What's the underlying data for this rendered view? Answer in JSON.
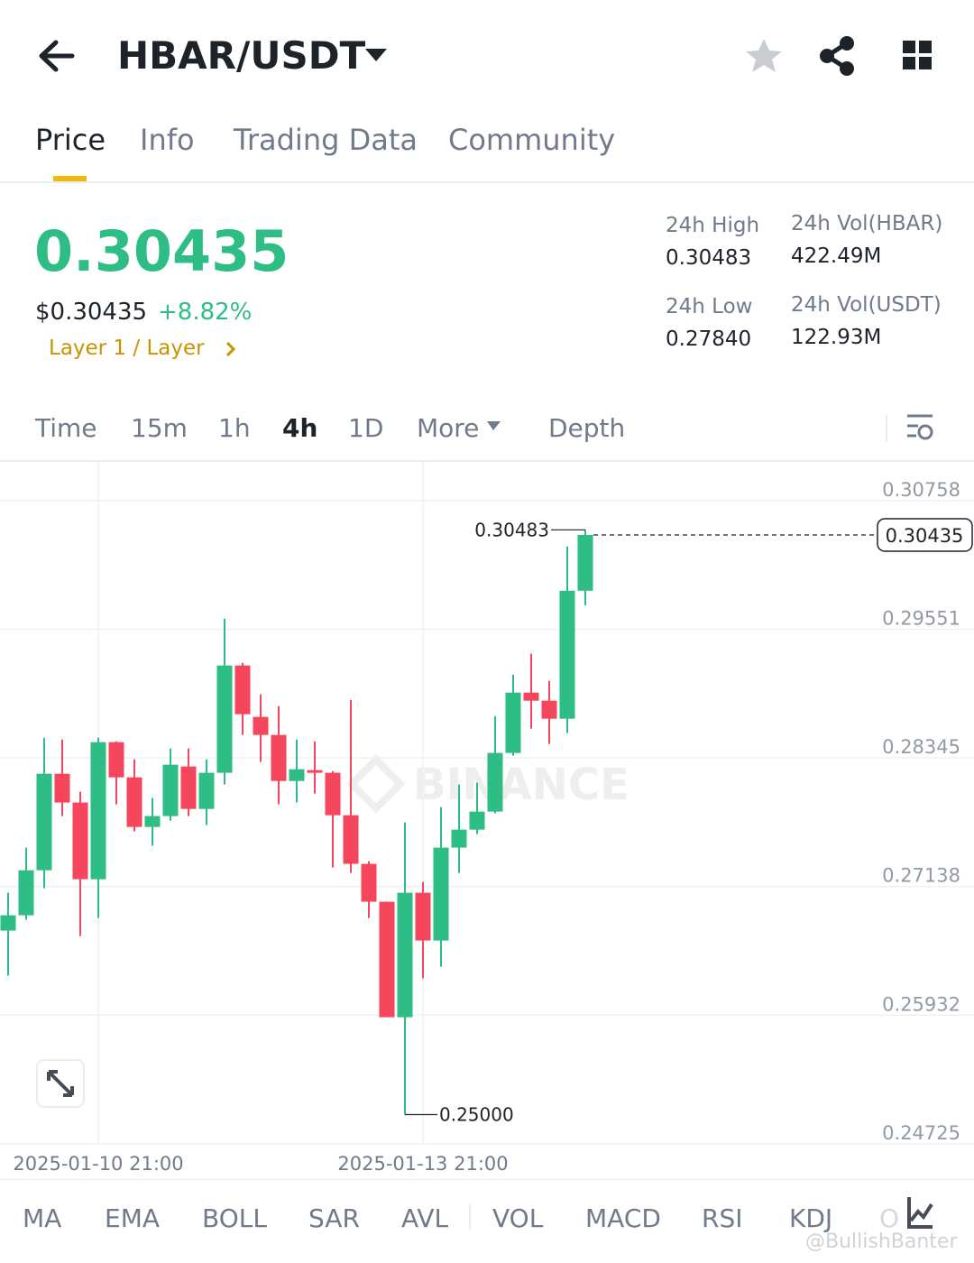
{
  "header": {
    "title": "HBAR/USDT"
  },
  "tabs": [
    "Price",
    "Info",
    "Trading Data",
    "Community"
  ],
  "ticker": {
    "price": "0.30435",
    "usd_price": "$0.30435",
    "change": "+8.82%",
    "tag": "Layer 1 / Layer"
  },
  "stats": [
    {
      "label": "24h High",
      "value": "0.30483"
    },
    {
      "label": "24h Vol(HBAR)",
      "value": "422.49M"
    },
    {
      "label": "24h Low",
      "value": "0.27840"
    },
    {
      "label": "24h Vol(USDT)",
      "value": "122.93M"
    }
  ],
  "intervals": [
    "Time",
    "15m",
    "1h",
    "4h",
    "1D",
    "More",
    "Depth"
  ],
  "indicators": [
    "MA",
    "EMA",
    "BOLL",
    "SAR",
    "AVL",
    "VOL",
    "MACD",
    "RSI",
    "KDJ",
    "O"
  ],
  "watermark": "BINANCE",
  "credit": "@BullishBanter",
  "chart_data": {
    "type": "candlestick",
    "categories": [
      null,
      null,
      null,
      null,
      null,
      "2025-01-10 21:00",
      null,
      null,
      null,
      null,
      null,
      null,
      null,
      null,
      null,
      null,
      null,
      null,
      null,
      null,
      null,
      null,
      null,
      "2025-01-13 21:00",
      null,
      null,
      null,
      null,
      null,
      null,
      null,
      null,
      null
    ],
    "open": [
      0.26725,
      0.26869,
      0.27291,
      0.28196,
      0.27926,
      0.27207,
      0.28492,
      0.28162,
      0.27697,
      0.27799,
      0.28264,
      0.27866,
      0.28205,
      0.29211,
      0.28729,
      0.2856,
      0.28128,
      0.2823,
      0.28205,
      0.27807,
      0.27351,
      0.26996,
      0.25913,
      0.2708,
      0.26632,
      0.27503,
      0.27672,
      0.27841,
      0.28391,
      0.28957,
      0.28881,
      0.28712,
      0.29912
    ],
    "high": [
      0.2708,
      0.27503,
      0.28534,
      0.28517,
      0.28027,
      0.28534,
      0.285,
      0.28331,
      0.27968,
      0.28433,
      0.28433,
      0.28331,
      0.2965,
      0.29236,
      0.2894,
      0.2883,
      0.28517,
      0.285,
      0.28221,
      0.28889,
      0.27376,
      0.26996,
      0.2774,
      0.27182,
      0.27883,
      0.28095,
      0.28112,
      0.28737,
      0.29126,
      0.29321,
      0.29067,
      0.30327,
      0.30483
    ],
    "low": [
      0.26302,
      0.26826,
      0.27122,
      0.27799,
      0.26674,
      0.26843,
      0.27909,
      0.27655,
      0.2752,
      0.27756,
      0.27799,
      0.27714,
      0.28095,
      0.2856,
      0.28306,
      0.27909,
      0.27926,
      0.2801,
      0.27317,
      0.27266,
      0.26843,
      0.25913,
      0.25,
      0.26277,
      0.26387,
      0.27266,
      0.2763,
      0.27824,
      0.28365,
      0.28619,
      0.28475,
      0.28577,
      0.29777
    ],
    "close": [
      0.26869,
      0.27291,
      0.28196,
      0.27926,
      0.27207,
      0.28492,
      0.28162,
      0.27697,
      0.27799,
      0.28281,
      0.27866,
      0.28205,
      0.29211,
      0.28754,
      0.2856,
      0.28128,
      0.28238,
      0.28205,
      0.27807,
      0.27351,
      0.26996,
      0.25913,
      0.2708,
      0.26632,
      0.27503,
      0.27672,
      0.27841,
      0.28391,
      0.28957,
      0.28881,
      0.28712,
      0.29912,
      0.30435
    ],
    "up_color": "#2ebd85",
    "down_color": "#f6465d",
    "ylim": [
      0.24725,
      0.3112
    ],
    "yticks": [
      0.30758,
      0.29551,
      0.28345,
      0.27138,
      0.25932,
      0.24725
    ],
    "grid": true,
    "annotations": {
      "max": "0.30483",
      "min": "0.25000",
      "last": "0.30435"
    }
  }
}
